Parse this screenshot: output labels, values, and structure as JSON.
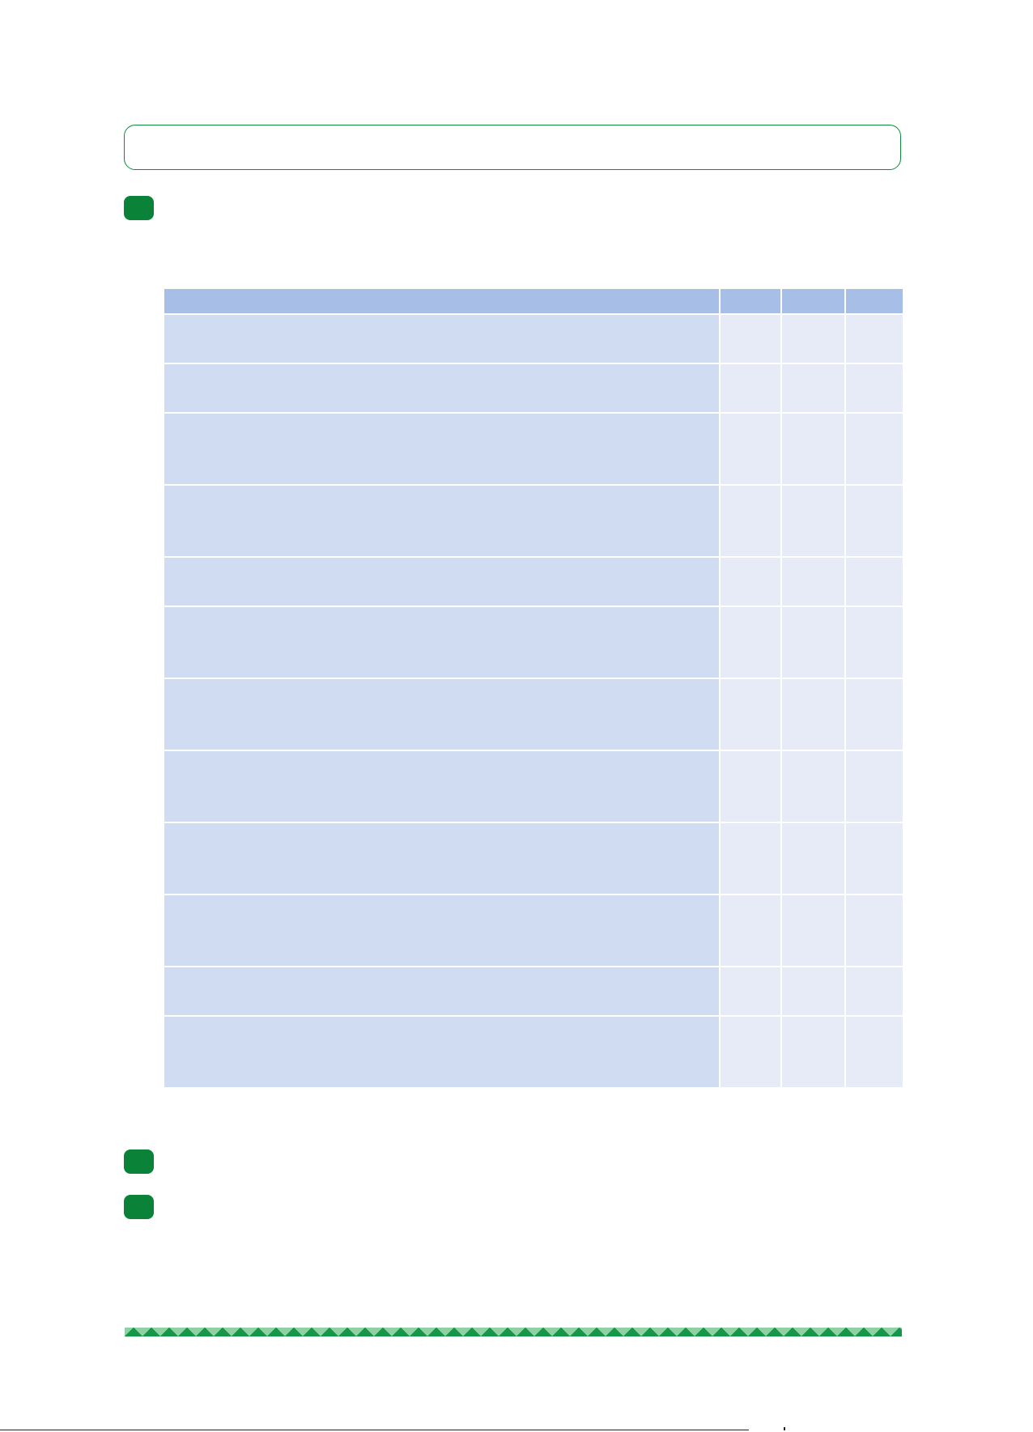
{
  "document": {
    "colors": {
      "brand_green": "#0a8238",
      "frame_green": "#0e8a3c",
      "table_header": "#a7bfe7",
      "table_first_col": "#d0dcf2",
      "table_other_cols": "#e6ebf7"
    },
    "table": {
      "columns": 4,
      "row_count": 16,
      "rows": [
        {
          "lines": 2
        },
        {
          "lines": 2
        },
        {
          "lines": 3
        },
        {
          "lines": 3
        },
        {
          "lines": 2
        },
        {
          "lines": 3
        },
        {
          "lines": 3
        },
        {
          "lines": 3
        },
        {
          "lines": 3
        },
        {
          "lines": 3
        },
        {
          "lines": 2
        },
        {
          "lines": 3
        }
      ]
    },
    "markers": 3
  }
}
